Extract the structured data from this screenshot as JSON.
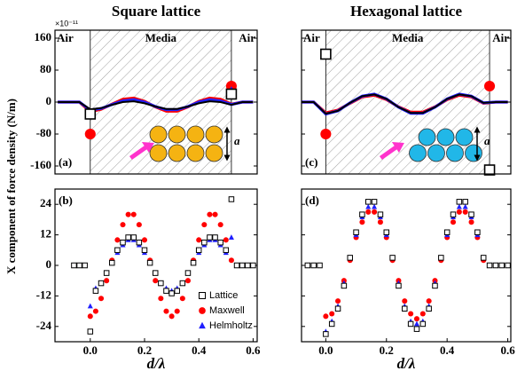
{
  "chart_data": [
    {
      "type": "line",
      "panel_label": "(a)",
      "title": "Square lattice",
      "ylabel": "X component of force density (N/m)",
      "exponent_label": "×10⁻¹¹",
      "region_labels": [
        "Air",
        "Media",
        "Air"
      ],
      "inset": "square",
      "inset_label": "a",
      "xlim": [
        -0.13,
        0.615
      ],
      "ylim": [
        -180,
        180
      ],
      "yticks": [
        -160,
        -80,
        0,
        80,
        160
      ],
      "ytick_labels": true,
      "x": [
        -0.12,
        -0.08,
        -0.04,
        0,
        0.04,
        0.08,
        0.12,
        0.16,
        0.2,
        0.24,
        0.28,
        0.32,
        0.36,
        0.4,
        0.44,
        0.48,
        0.52,
        0.56,
        0.6
      ],
      "series": [
        {
          "color": "#ff0000",
          "values": [
            0,
            0,
            0,
            -24,
            -18,
            -5,
            7,
            10,
            2,
            -12,
            -23,
            -23,
            -12,
            2,
            10,
            7,
            -5,
            0,
            0
          ]
        },
        {
          "color": "#1f1fff",
          "values": [
            0,
            0,
            0,
            -20,
            -16,
            -6,
            3,
            6,
            0,
            -11,
            -19,
            -19,
            -11,
            0,
            6,
            3,
            -6,
            0,
            0
          ]
        },
        {
          "color": "#000000",
          "values": [
            0,
            0,
            0,
            -18,
            -15,
            -7,
            0,
            2,
            -3,
            -11,
            -17,
            -17,
            -11,
            -3,
            2,
            0,
            -7,
            0,
            0
          ]
        }
      ],
      "edge_points": {
        "x": [
          0,
          0.52
        ],
        "series": [
          {
            "marker": "circle",
            "color": "#ff0000",
            "values": [
              -80,
              40
            ]
          },
          {
            "marker": "triangle",
            "color": "#1f1fff",
            "values": [
              -30,
              25
            ]
          },
          {
            "marker": "square",
            "color": "#000000",
            "values": [
              -30,
              20
            ]
          }
        ]
      }
    },
    {
      "type": "scatter",
      "panel_label": "(b)",
      "xlabel": "d/λ",
      "legend": "lower right",
      "xlim": [
        -0.13,
        0.615
      ],
      "xticks": [
        {
          "value": 0,
          "label": "0.0"
        },
        0.2,
        0.4,
        0.6
      ],
      "ylim": [
        -30,
        30
      ],
      "yticks": [
        -24,
        -12,
        0,
        12,
        24
      ],
      "ytick_labels": true,
      "x": [
        -0.06,
        -0.04,
        -0.02,
        0,
        0.02,
        0.04,
        0.06,
        0.08,
        0.1,
        0.12,
        0.14,
        0.16,
        0.18,
        0.2,
        0.22,
        0.24,
        0.26,
        0.28,
        0.3,
        0.32,
        0.34,
        0.36,
        0.38,
        0.4,
        0.42,
        0.44,
        0.46,
        0.48,
        0.5,
        0.52,
        0.54,
        0.56,
        0.58,
        0.6
      ],
      "series": [
        {
          "name": "Lattice",
          "marker": "square",
          "color": "#000000",
          "values": [
            0,
            0,
            0,
            -26,
            -10,
            -7,
            -3,
            1,
            6,
            9,
            11,
            11,
            9,
            6,
            1,
            -3,
            -7,
            -10,
            -11,
            -10,
            -7,
            -3,
            1,
            6,
            9,
            11,
            11,
            9,
            6,
            26,
            0,
            0,
            0,
            0
          ]
        },
        {
          "name": "Maxwell",
          "marker": "circle",
          "color": "#ff0000",
          "values": [
            0,
            0,
            0,
            -20,
            -18,
            -13,
            -6,
            2,
            10,
            16,
            20,
            20,
            16,
            10,
            2,
            -6,
            -13,
            -18,
            -20,
            -18,
            -13,
            -6,
            2,
            10,
            16,
            20,
            20,
            16,
            10,
            2,
            0,
            0,
            0,
            0
          ]
        },
        {
          "name": "Helmholtz",
          "marker": "triangle",
          "color": "#1f1fff",
          "values": [
            0,
            0,
            0,
            -16,
            -9,
            -7,
            -3,
            1,
            5,
            8,
            10,
            10,
            8,
            5,
            1,
            -3,
            -7,
            -9,
            -10,
            -9,
            -7,
            -3,
            1,
            5,
            8,
            10,
            10,
            8,
            5,
            11,
            0,
            0,
            0,
            0
          ]
        }
      ]
    },
    {
      "type": "line",
      "panel_label": "(c)",
      "title": "Hexagonal lattice",
      "region_labels": [
        "Air",
        "Media",
        "Air"
      ],
      "inset": "hexagonal",
      "inset_label": "a",
      "xlim": [
        -0.08,
        0.61
      ],
      "ylim": [
        -180,
        180
      ],
      "yticks": [
        -160,
        -80,
        0,
        80,
        160
      ],
      "ytick_labels": false,
      "x": [
        -0.08,
        -0.04,
        0,
        0.04,
        0.08,
        0.12,
        0.16,
        0.2,
        0.24,
        0.28,
        0.32,
        0.36,
        0.4,
        0.44,
        0.48,
        0.52,
        0.56,
        0.6
      ],
      "series": [
        {
          "color": "#ff0000",
          "values": [
            0,
            0,
            -27,
            -20,
            -3,
            13,
            17,
            6,
            -12,
            -25,
            -25,
            -12,
            6,
            17,
            13,
            -3,
            0,
            0
          ]
        },
        {
          "color": "#1f1fff",
          "values": [
            0,
            0,
            -30,
            -22,
            -2,
            15,
            20,
            8,
            -13,
            -28,
            -28,
            -13,
            8,
            20,
            15,
            -2,
            0,
            0
          ]
        },
        {
          "color": "#000000",
          "values": [
            0,
            0,
            -29,
            -22,
            -2,
            15,
            19,
            8,
            -13,
            -27,
            -27,
            -13,
            8,
            19,
            15,
            -2,
            0,
            0
          ]
        }
      ],
      "edge_points": {
        "x": [
          0,
          0.54
        ],
        "series": [
          {
            "marker": "circle",
            "color": "#ff0000",
            "values": [
              -80,
              40
            ]
          },
          {
            "marker": "triangle",
            "color": "#1f1fff",
            "values": [
              120,
              -170
            ]
          },
          {
            "marker": "square",
            "color": "#000000",
            "values": [
              120,
              -170
            ]
          }
        ]
      }
    },
    {
      "type": "scatter",
      "panel_label": "(d)",
      "xlabel": "d/λ",
      "xlim": [
        -0.08,
        0.61
      ],
      "xticks": [
        {
          "value": 0,
          "label": "0.0"
        },
        0.2,
        0.4,
        0.6
      ],
      "ylim": [
        -30,
        30
      ],
      "yticks": [
        -24,
        -12,
        0,
        12,
        24
      ],
      "ytick_labels": false,
      "x": [
        -0.06,
        -0.04,
        -0.02,
        0,
        0.02,
        0.04,
        0.06,
        0.08,
        0.1,
        0.12,
        0.14,
        0.16,
        0.18,
        0.2,
        0.22,
        0.24,
        0.26,
        0.28,
        0.3,
        0.32,
        0.34,
        0.36,
        0.38,
        0.4,
        0.42,
        0.44,
        0.46,
        0.48,
        0.5,
        0.52,
        0.54,
        0.56,
        0.58,
        0.6
      ],
      "series": [
        {
          "name": "Lattice",
          "marker": "square",
          "color": "#000000",
          "values": [
            0,
            0,
            0,
            -27,
            -23,
            -17,
            -8,
            3,
            13,
            20,
            25,
            25,
            20,
            13,
            3,
            -8,
            -17,
            -23,
            -25,
            -23,
            -17,
            -8,
            3,
            13,
            20,
            25,
            25,
            20,
            13,
            3,
            0,
            0,
            0,
            0
          ]
        },
        {
          "name": "Maxwell",
          "marker": "circle",
          "color": "#ff0000",
          "values": [
            0,
            0,
            0,
            -20,
            -19,
            -14,
            -6,
            2,
            11,
            17,
            21,
            21,
            17,
            11,
            2,
            -6,
            -14,
            -19,
            -21,
            -19,
            -14,
            -6,
            2,
            11,
            17,
            21,
            21,
            17,
            11,
            2,
            0,
            0,
            0,
            0
          ]
        },
        {
          "name": "Helmholtz",
          "marker": "triangle",
          "color": "#1f1fff",
          "values": [
            0,
            0,
            0,
            -26,
            -22,
            -16,
            -7,
            3,
            12,
            19,
            23,
            23,
            19,
            12,
            3,
            -7,
            -16,
            -22,
            -23,
            -22,
            -16,
            -7,
            3,
            12,
            19,
            23,
            23,
            19,
            12,
            3,
            0,
            0,
            0,
            0
          ]
        }
      ]
    }
  ]
}
